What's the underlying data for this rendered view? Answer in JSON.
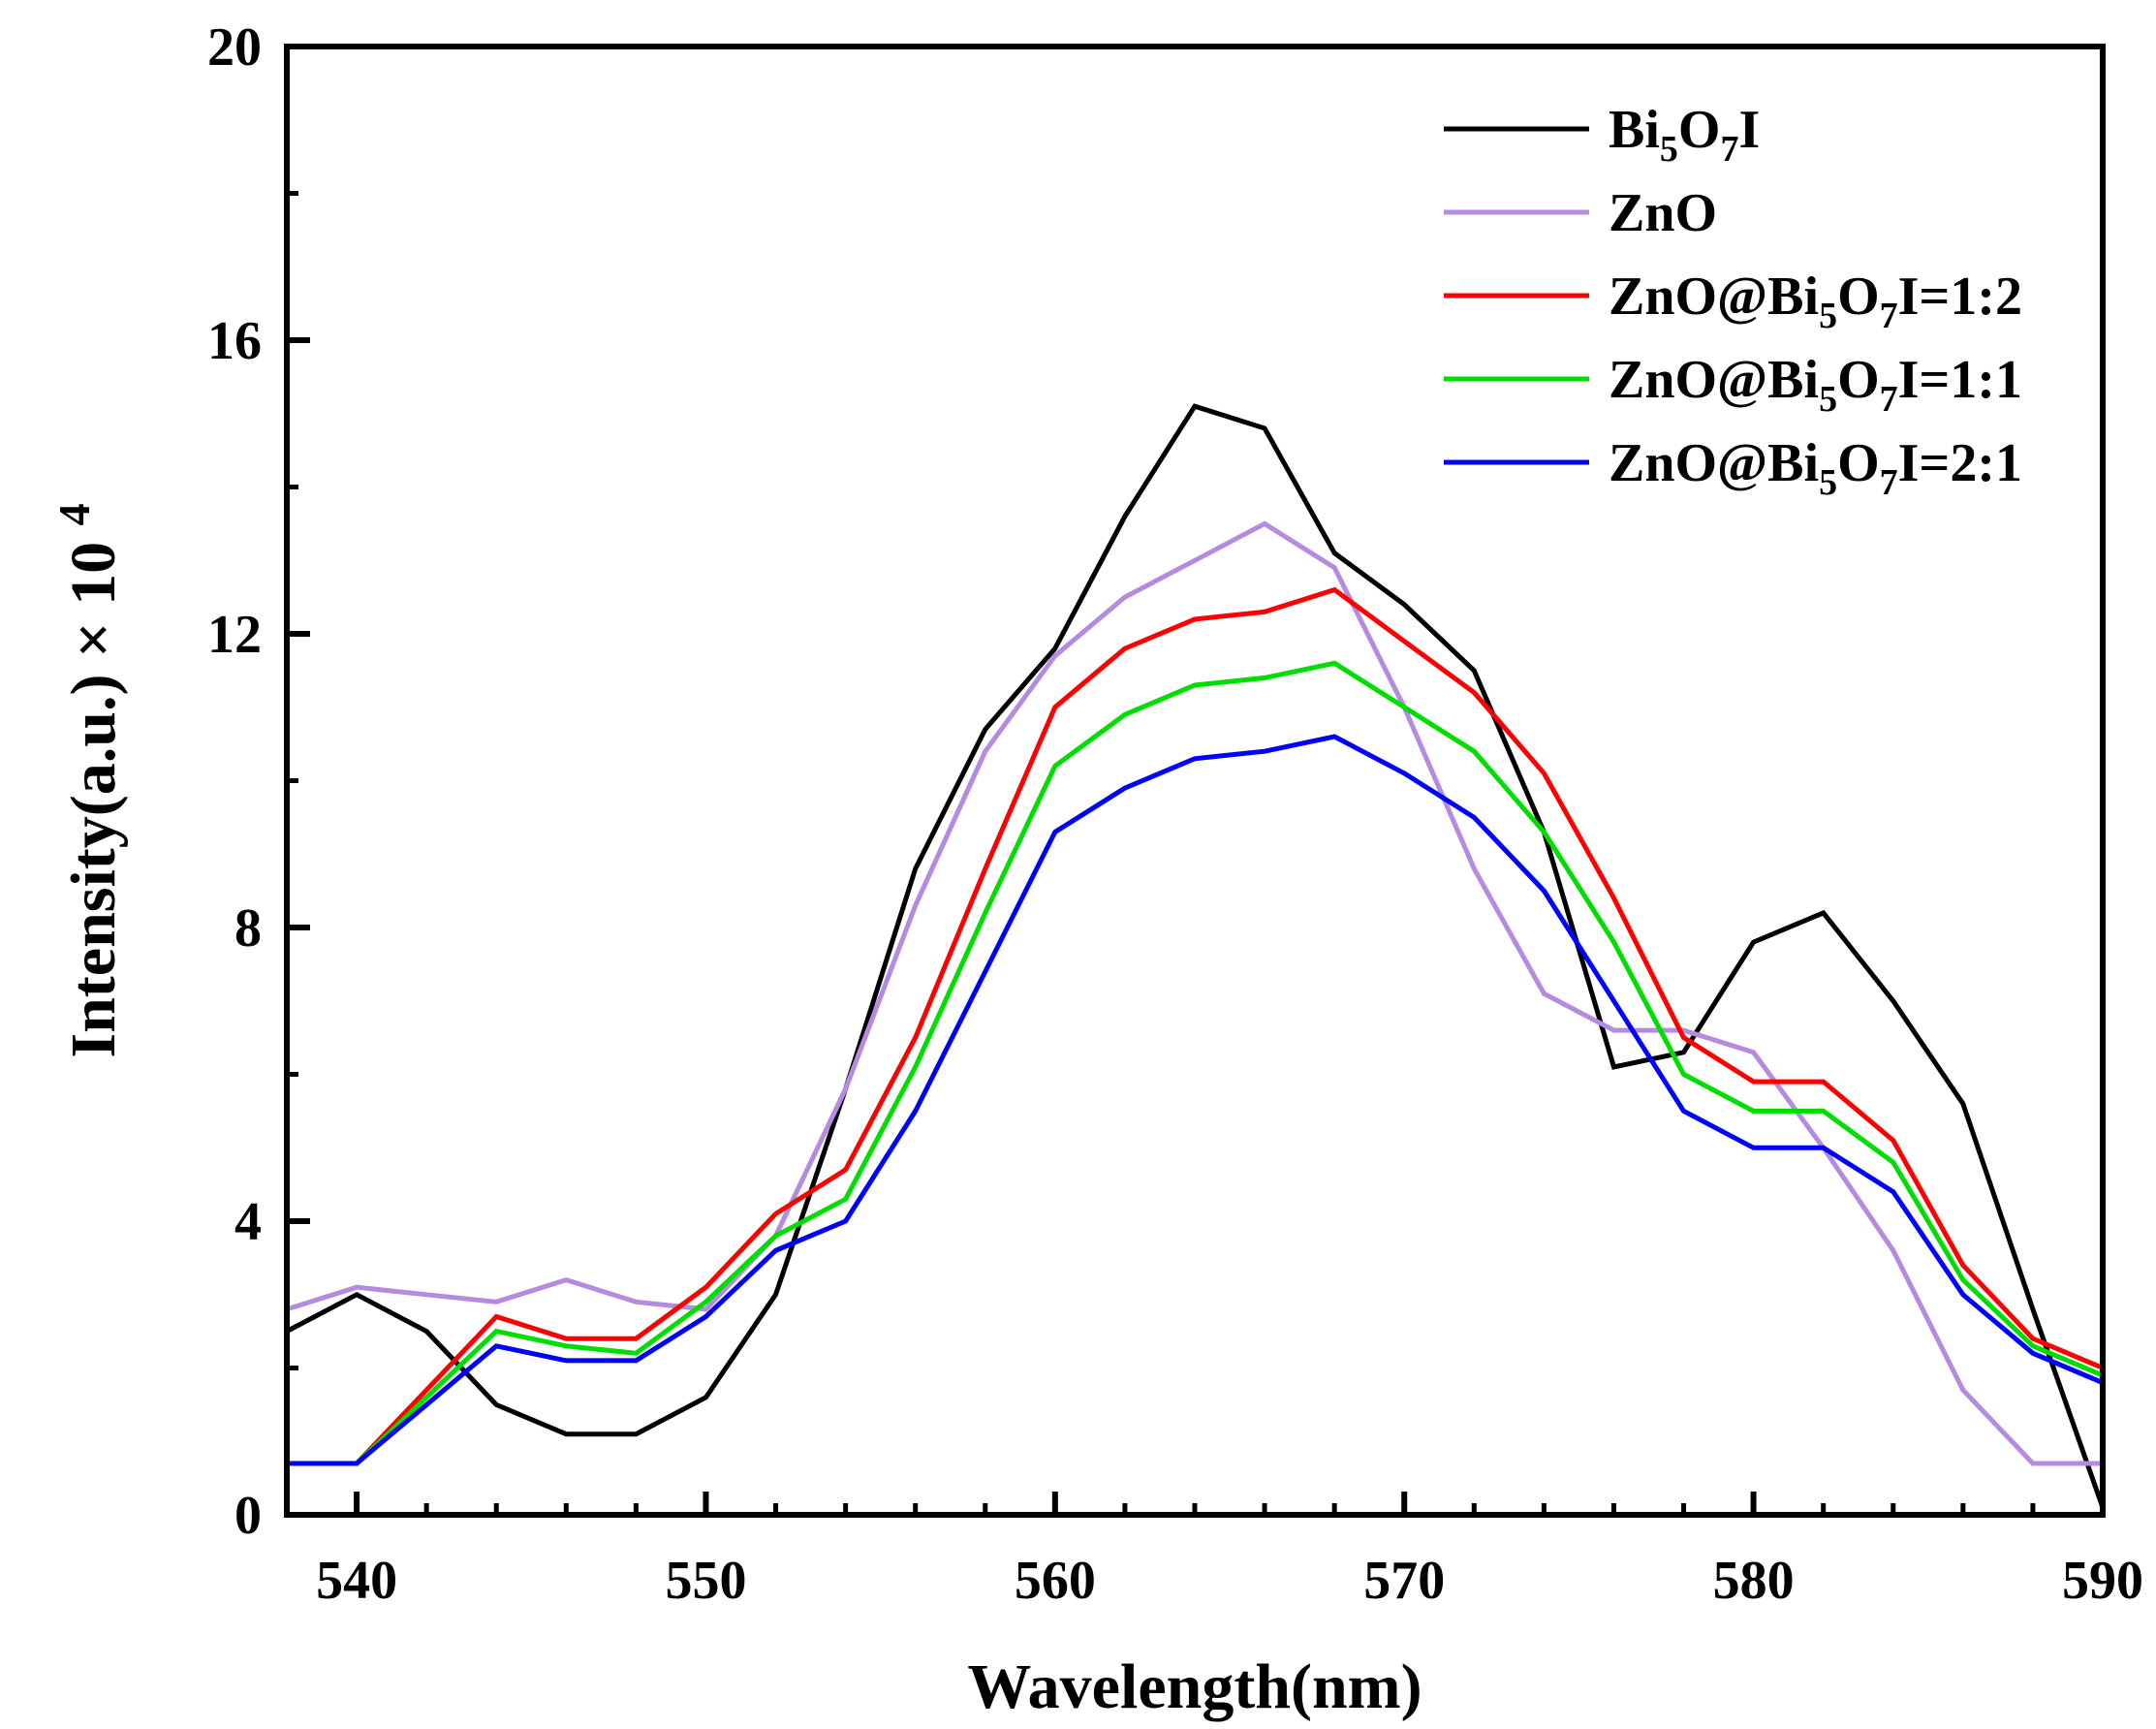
{
  "chart_data": {
    "type": "line",
    "title": "",
    "xlabel": "Wavelength(nm)",
    "ylabel": {
      "main": "Intensity(a.u.)",
      "times": "×",
      "base": "10",
      "exp": "4"
    },
    "xlim": [
      538,
      590
    ],
    "ylim": [
      0,
      20
    ],
    "xticks": [
      540,
      550,
      560,
      570,
      580,
      590
    ],
    "yticks": [
      0,
      4,
      8,
      12,
      16,
      20
    ],
    "grid": false,
    "legend_position": "top-right",
    "x": [
      538,
      540,
      542,
      544,
      546,
      548,
      550,
      552,
      554,
      556,
      558,
      560,
      562,
      564,
      566,
      568,
      570,
      572,
      574,
      576,
      578,
      580,
      582,
      584,
      586,
      588,
      590
    ],
    "series": [
      {
        "name": "Bi5O7I",
        "label_parts": [
          {
            "t": "Bi"
          },
          {
            "t": "5",
            "sub": true
          },
          {
            "t": "O"
          },
          {
            "t": "7",
            "sub": true
          },
          {
            "t": "I"
          }
        ],
        "color": "#000000",
        "values": [
          2.5,
          3.0,
          2.5,
          1.5,
          1.1,
          1.1,
          1.6,
          3.0,
          5.8,
          8.8,
          10.7,
          11.8,
          13.6,
          15.1,
          14.8,
          13.1,
          12.4,
          11.5,
          9.3,
          6.1,
          6.3,
          7.8,
          8.2,
          7.0,
          5.6,
          2.8,
          0.1
        ]
      },
      {
        "name": "ZnO",
        "label_parts": [
          {
            "t": "ZnO"
          }
        ],
        "color": "#b48be0",
        "values": [
          2.8,
          3.1,
          3.0,
          2.9,
          3.2,
          2.9,
          2.8,
          3.8,
          5.8,
          8.3,
          10.4,
          11.7,
          12.5,
          13.0,
          13.5,
          12.9,
          11.0,
          8.8,
          7.1,
          6.6,
          6.6,
          6.3,
          5.0,
          3.6,
          1.7,
          0.7,
          0.7
        ]
      },
      {
        "name": "ZnO@Bi5O7I=1:2",
        "label_parts": [
          {
            "t": "ZnO@Bi"
          },
          {
            "t": "5",
            "sub": true
          },
          {
            "t": "O"
          },
          {
            "t": "7",
            "sub": true
          },
          {
            "t": "I=1:2"
          }
        ],
        "color": "#ff0000",
        "values": [
          0.7,
          0.7,
          1.7,
          2.7,
          2.4,
          2.4,
          3.1,
          4.1,
          4.7,
          6.5,
          8.8,
          11.0,
          11.8,
          12.2,
          12.3,
          12.6,
          11.9,
          11.2,
          10.1,
          8.4,
          6.5,
          5.9,
          5.9,
          5.1,
          3.4,
          2.4,
          2.0
        ]
      },
      {
        "name": "ZnO@Bi5O7I=1:1",
        "label_parts": [
          {
            "t": "ZnO@Bi"
          },
          {
            "t": "5",
            "sub": true
          },
          {
            "t": "O"
          },
          {
            "t": "7",
            "sub": true
          },
          {
            "t": "I=1:1"
          }
        ],
        "color": "#00dd00",
        "values": [
          0.7,
          0.7,
          1.6,
          2.5,
          2.3,
          2.2,
          2.9,
          3.8,
          4.3,
          6.1,
          8.2,
          10.2,
          10.9,
          11.3,
          11.4,
          11.6,
          11.0,
          10.4,
          9.3,
          7.8,
          6.0,
          5.5,
          5.5,
          4.8,
          3.2,
          2.3,
          1.9
        ]
      },
      {
        "name": "ZnO@Bi5O7I=2:1",
        "label_parts": [
          {
            "t": "ZnO@Bi"
          },
          {
            "t": "5",
            "sub": true
          },
          {
            "t": "O"
          },
          {
            "t": "7",
            "sub": true
          },
          {
            "t": "I=2:1"
          }
        ],
        "color": "#0000ff",
        "values": [
          0.7,
          0.7,
          1.5,
          2.3,
          2.1,
          2.1,
          2.7,
          3.6,
          4.0,
          5.5,
          7.4,
          9.3,
          9.9,
          10.3,
          10.4,
          10.6,
          10.1,
          9.5,
          8.5,
          7.0,
          5.5,
          5.0,
          5.0,
          4.4,
          3.0,
          2.2,
          1.8
        ]
      }
    ]
  }
}
